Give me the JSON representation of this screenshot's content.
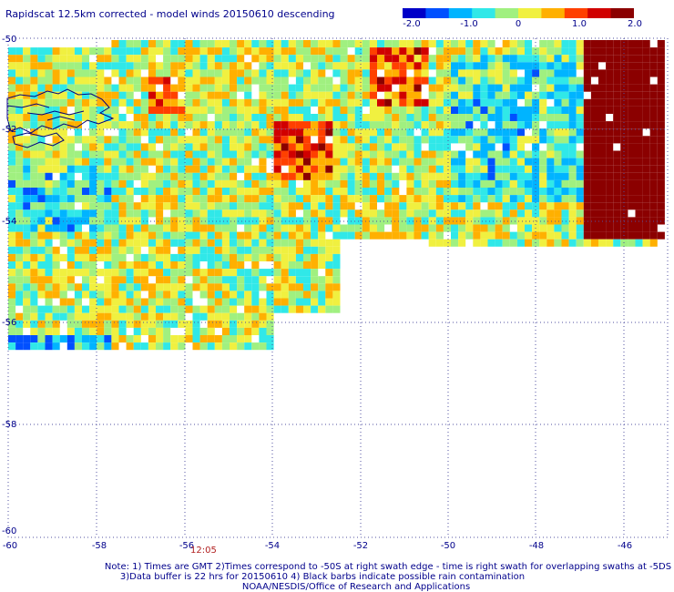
{
  "title": "Rapidscat 12.5km corrected - model winds 20150610 descending",
  "colorbar": {
    "labels": [
      "-2.0",
      "-1.0",
      "0",
      "1.0",
      "2.0"
    ],
    "min": -2.0,
    "max": 2.0,
    "colors": [
      "#0000c8",
      "#0050ff",
      "#00b4ff",
      "#30e8e8",
      "#a0f080",
      "#f0f040",
      "#ffb000",
      "#ff4000",
      "#d00000",
      "#8b0000"
    ]
  },
  "axes": {
    "lon_labels": [
      "-60",
      "-58",
      "-56",
      "-54",
      "-52",
      "-50",
      "-48",
      "-46"
    ],
    "lat_labels": [
      "-50",
      "-52",
      "-54",
      "-56",
      "-58",
      "-60"
    ]
  },
  "time_label": "12:05",
  "notes": {
    "line1": "Note: 1) Times are GMT 2)Times correspond to -50S at right swath edge - time is right swath for overlapping swaths at -5DS",
    "line2": "3)Data buffer is 22 hrs for 20150610 4) Black barbs indicate possible rain contamination",
    "line3": "NOAA/NESDIS/Office of Research and Applications"
  }
}
